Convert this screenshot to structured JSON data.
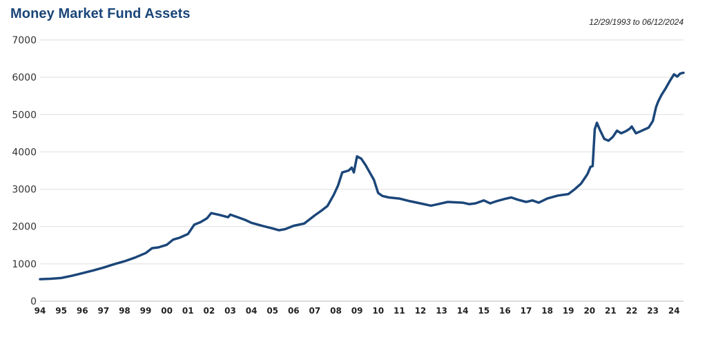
{
  "chart_data": {
    "type": "line",
    "title": "Money Market Fund Assets",
    "subtitle": "12/29/1993 to 06/12/2024",
    "xlabel": "",
    "ylabel": "",
    "ylim": [
      0,
      7000
    ],
    "yticks": [
      0,
      1000,
      2000,
      3000,
      4000,
      5000,
      6000,
      7000
    ],
    "xticks": [
      {
        "year": 1994,
        "label": "94"
      },
      {
        "year": 1995,
        "label": "95"
      },
      {
        "year": 1996,
        "label": "96"
      },
      {
        "year": 1997,
        "label": "97"
      },
      {
        "year": 1998,
        "label": "98"
      },
      {
        "year": 1999,
        "label": "99"
      },
      {
        "year": 2000,
        "label": "00"
      },
      {
        "year": 2001,
        "label": "01"
      },
      {
        "year": 2002,
        "label": "02"
      },
      {
        "year": 2003,
        "label": "03"
      },
      {
        "year": 2004,
        "label": "04"
      },
      {
        "year": 2005,
        "label": "05"
      },
      {
        "year": 2006,
        "label": "06"
      },
      {
        "year": 2007,
        "label": "07"
      },
      {
        "year": 2008,
        "label": "08"
      },
      {
        "year": 2009,
        "label": "09"
      },
      {
        "year": 2010,
        "label": "10"
      },
      {
        "year": 2011,
        "label": "11"
      },
      {
        "year": 2012,
        "label": "12"
      },
      {
        "year": 2013,
        "label": "13"
      },
      {
        "year": 2014,
        "label": "14"
      },
      {
        "year": 2015,
        "label": "15"
      },
      {
        "year": 2016,
        "label": "16"
      },
      {
        "year": 2017,
        "label": "17"
      },
      {
        "year": 2018,
        "label": "18"
      },
      {
        "year": 2019,
        "label": "19"
      },
      {
        "year": 2020,
        "label": "20"
      },
      {
        "year": 2021,
        "label": "21"
      },
      {
        "year": 2022,
        "label": "22"
      },
      {
        "year": 2023,
        "label": "23"
      },
      {
        "year": 2024,
        "label": "24"
      }
    ],
    "xlim": [
      1994,
      2024.45
    ],
    "grid": true,
    "legend": "none",
    "line_color": "#1b4679",
    "grid_color": "#dddddd",
    "title_color": "#1b4679",
    "series": [
      {
        "x": [
          1994.0,
          1994.5,
          1995.0,
          1995.5,
          1996.0,
          1996.5,
          1997.0,
          1997.5,
          1998.0,
          1998.5,
          1999.0,
          1999.3,
          1999.6,
          2000.0,
          2000.3,
          2000.6,
          2001.0,
          2001.3,
          2001.6,
          2001.9,
          2002.1,
          2002.5,
          2002.9,
          2003.0,
          2003.3,
          2003.7,
          2004.0,
          2004.5,
          2005.0,
          2005.3,
          2005.6,
          2006.0,
          2006.5,
          2007.0,
          2007.3,
          2007.6,
          2007.9,
          2008.1,
          2008.3,
          2008.6,
          2008.75,
          2008.85,
          2009.0,
          2009.2,
          2009.4,
          2009.6,
          2009.8,
          2010.0,
          2010.2,
          2010.5,
          2011.0,
          2011.5,
          2012.0,
          2012.5,
          2013.0,
          2013.3,
          2013.6,
          2014.0,
          2014.3,
          2014.6,
          2015.0,
          2015.3,
          2015.6,
          2016.0,
          2016.3,
          2016.6,
          2017.0,
          2017.3,
          2017.6,
          2018.0,
          2018.5,
          2019.0,
          2019.3,
          2019.6,
          2019.9,
          2020.05,
          2020.15,
          2020.25,
          2020.35,
          2020.5,
          2020.7,
          2020.9,
          2021.1,
          2021.3,
          2021.5,
          2021.7,
          2021.9,
          2022.0,
          2022.2,
          2022.4,
          2022.6,
          2022.8,
          2023.0,
          2023.15,
          2023.25,
          2023.4,
          2023.6,
          2023.8,
          2024.0,
          2024.15,
          2024.3,
          2024.45
        ],
        "y": [
          590,
          600,
          620,
          680,
          750,
          820,
          900,
          990,
          1070,
          1170,
          1290,
          1420,
          1440,
          1510,
          1650,
          1700,
          1800,
          2050,
          2120,
          2220,
          2360,
          2310,
          2250,
          2320,
          2260,
          2180,
          2100,
          2020,
          1950,
          1900,
          1930,
          2020,
          2080,
          2300,
          2420,
          2550,
          2850,
          3100,
          3450,
          3500,
          3580,
          3450,
          3880,
          3820,
          3650,
          3450,
          3250,
          2900,
          2820,
          2780,
          2750,
          2680,
          2620,
          2560,
          2620,
          2660,
          2650,
          2640,
          2600,
          2620,
          2700,
          2620,
          2680,
          2740,
          2780,
          2720,
          2660,
          2700,
          2640,
          2750,
          2830,
          2870,
          3000,
          3150,
          3400,
          3600,
          3620,
          4600,
          4780,
          4580,
          4350,
          4300,
          4400,
          4570,
          4500,
          4550,
          4620,
          4680,
          4500,
          4550,
          4600,
          4650,
          4830,
          5200,
          5350,
          5520,
          5700,
          5900,
          6080,
          6020,
          6100,
          6120
        ]
      }
    ]
  }
}
